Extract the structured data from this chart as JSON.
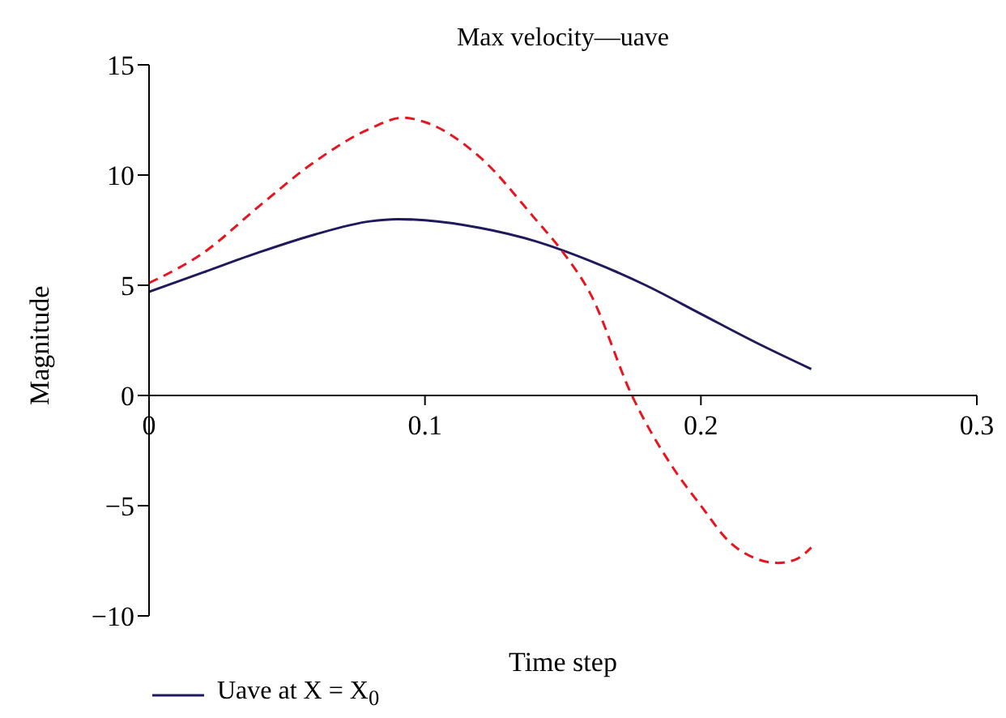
{
  "chart_data": {
    "type": "line",
    "title": "Max velocity—uave",
    "xlabel": "Time step",
    "ylabel": "Magnitude",
    "xlim": [
      0,
      0.3
    ],
    "xticks": [
      0,
      0.1,
      0.2,
      0.3
    ],
    "ylim": [
      -10,
      15
    ],
    "yticks": [
      -10,
      -5,
      0,
      5,
      10,
      15
    ],
    "grid": false,
    "legend": "bottom left",
    "marker": "none",
    "series": [
      {
        "name": "Uave at X = X$_{0}$",
        "color": "#1f1a5c",
        "line_style": "solid",
        "x": [
          0,
          0.02,
          0.04,
          0.06,
          0.08,
          0.09,
          0.1,
          0.12,
          0.14,
          0.16,
          0.18,
          0.2,
          0.22,
          0.24
        ],
        "values": [
          4.7,
          5.6,
          6.5,
          7.3,
          7.9,
          8.0,
          7.95,
          7.6,
          7.0,
          6.1,
          5.0,
          3.7,
          2.4,
          1.2
        ]
      },
      {
        "color": "#e8141e",
        "line_style": "dashed",
        "x": [
          0,
          0.02,
          0.04,
          0.06,
          0.08,
          0.092,
          0.1,
          0.12,
          0.14,
          0.15,
          0.16,
          0.175,
          0.19,
          0.2,
          0.21,
          0.22,
          0.228,
          0.235,
          0.24
        ],
        "values": [
          5.1,
          6.5,
          8.6,
          10.6,
          12.1,
          12.6,
          12.4,
          10.8,
          8.0,
          6.5,
          4.6,
          0,
          -3.3,
          -5.0,
          -6.6,
          -7.4,
          -7.6,
          -7.4,
          -6.9
        ]
      }
    ]
  }
}
